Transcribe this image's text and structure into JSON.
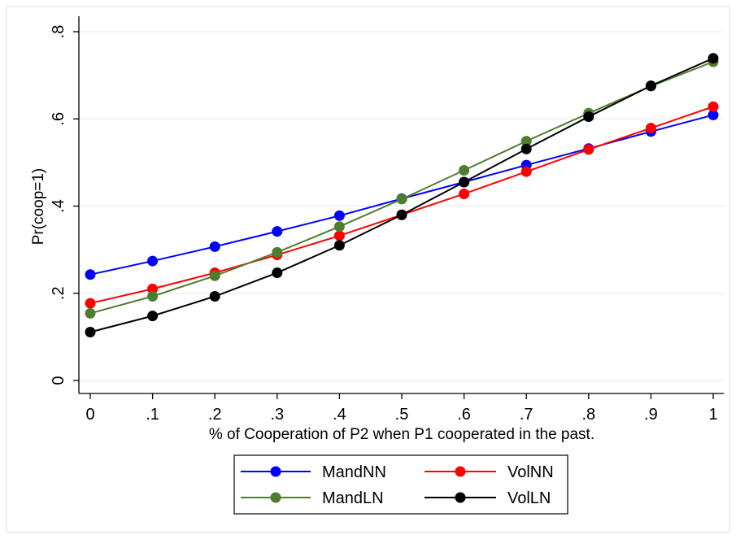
{
  "chart_data": {
    "type": "line",
    "title": "",
    "xlabel": "% of Cooperation of P2 when P1 cooperated in the past.",
    "ylabel": "Pr(coop=1)",
    "xlim": [
      0,
      1
    ],
    "ylim": [
      0,
      0.8
    ],
    "x": [
      0,
      0.1,
      0.2,
      0.3,
      0.4,
      0.5,
      0.6,
      0.7,
      0.8,
      0.9,
      1.0
    ],
    "x_tick_labels": [
      "0",
      ".1",
      ".2",
      ".3",
      ".4",
      ".5",
      ".6",
      ".7",
      ".8",
      ".9",
      "1"
    ],
    "y_ticks": [
      0,
      0.2,
      0.4,
      0.6,
      0.8
    ],
    "y_tick_labels": [
      "0",
      ".2",
      ".4",
      ".6",
      ".8"
    ],
    "grid": true,
    "legend_position": "bottom",
    "series": [
      {
        "name": "MandNN",
        "color": "#0000ff",
        "values": [
          0.243,
          0.274,
          0.307,
          0.342,
          0.378,
          0.417,
          0.455,
          0.494,
          0.532,
          0.571,
          0.609
        ]
      },
      {
        "name": "VolNN",
        "color": "#ff0000",
        "values": [
          0.177,
          0.21,
          0.247,
          0.288,
          0.332,
          0.38,
          0.428,
          0.479,
          0.53,
          0.579,
          0.628
        ]
      },
      {
        "name": "MandLN",
        "color": "#4f7d2f",
        "values": [
          0.154,
          0.193,
          0.24,
          0.294,
          0.353,
          0.416,
          0.482,
          0.549,
          0.613,
          0.675,
          0.731
        ]
      },
      {
        "name": "VolLN",
        "color": "#000000",
        "values": [
          0.111,
          0.148,
          0.193,
          0.247,
          0.31,
          0.38,
          0.455,
          0.531,
          0.605,
          0.676,
          0.739
        ]
      }
    ]
  }
}
